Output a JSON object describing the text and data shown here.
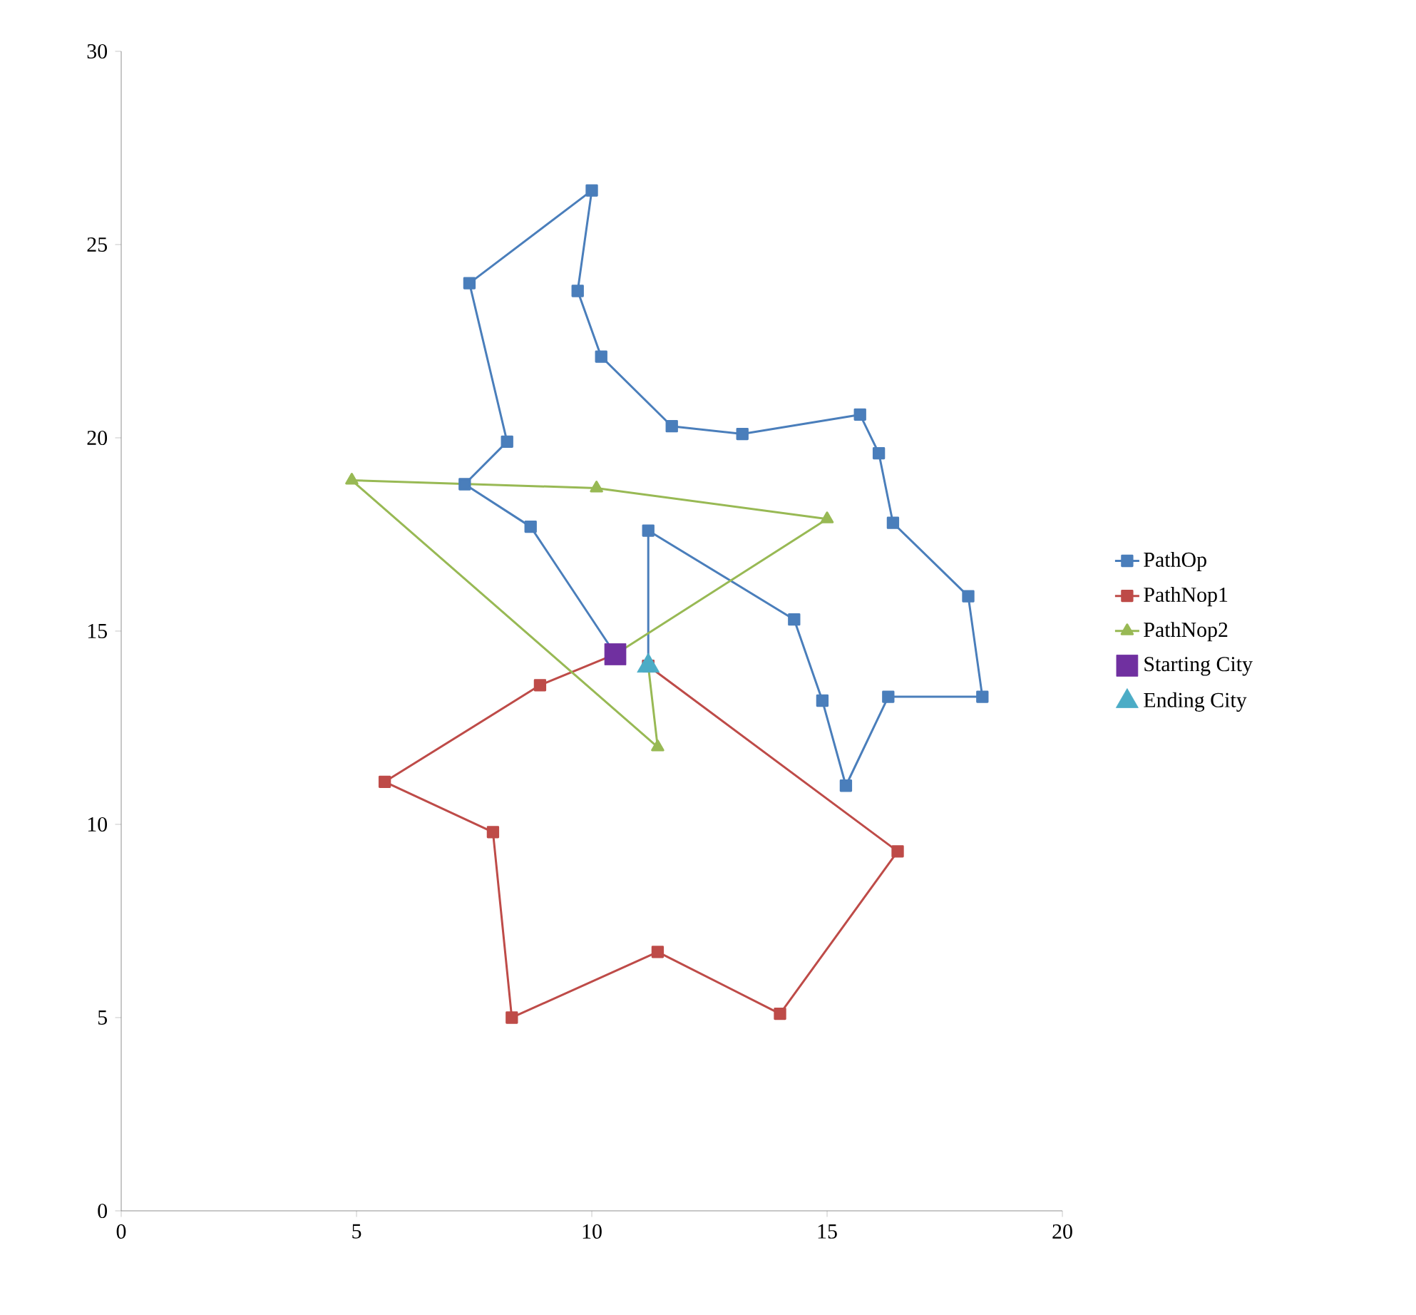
{
  "chart_data": {
    "type": "line",
    "xlim": [
      0,
      20
    ],
    "ylim": [
      0,
      30
    ],
    "xticks": [
      0,
      5,
      10,
      15,
      20
    ],
    "yticks": [
      0,
      5,
      10,
      15,
      20,
      25,
      30
    ],
    "legend": "right",
    "grid": false,
    "line_style": "solid",
    "series": [
      {
        "name": "PathOp",
        "color": "#4a7ebb",
        "marker": "square",
        "x": [
          10.5,
          8.7,
          7.3,
          8.2,
          7.4,
          10.0,
          9.7,
          10.2,
          11.7,
          13.2,
          15.7,
          16.1,
          16.4,
          18.0,
          18.3,
          16.3,
          15.4,
          14.9,
          14.3,
          11.2,
          11.2
        ],
        "values": [
          14.4,
          17.7,
          18.8,
          19.9,
          24.0,
          26.4,
          23.8,
          22.1,
          20.3,
          20.1,
          20.6,
          19.6,
          17.8,
          15.9,
          13.3,
          13.3,
          11.0,
          13.2,
          15.3,
          17.6,
          14.1
        ]
      },
      {
        "name": "PathNop1",
        "color": "#be4b48",
        "marker": "square",
        "x": [
          10.5,
          8.9,
          5.6,
          7.9,
          8.3,
          11.4,
          14.0,
          16.5,
          11.2
        ],
        "values": [
          14.4,
          13.6,
          11.1,
          9.8,
          5.0,
          6.7,
          5.1,
          9.3,
          14.1
        ]
      },
      {
        "name": "PathNop2",
        "color": "#98b954",
        "marker": "triangle",
        "x": [
          10.5,
          15.0,
          10.1,
          4.9,
          11.4,
          11.2
        ],
        "values": [
          14.4,
          17.9,
          18.7,
          18.9,
          12.0,
          14.1
        ]
      },
      {
        "name": "Starting City",
        "type": "scatter",
        "color": "#7030a0",
        "marker": "square",
        "x": [
          10.5
        ],
        "values": [
          14.4
        ]
      },
      {
        "name": "Ending City",
        "type": "scatter",
        "color": "#4bacc6",
        "marker": "triangle",
        "x": [
          11.2
        ],
        "values": [
          14.1
        ]
      }
    ]
  }
}
